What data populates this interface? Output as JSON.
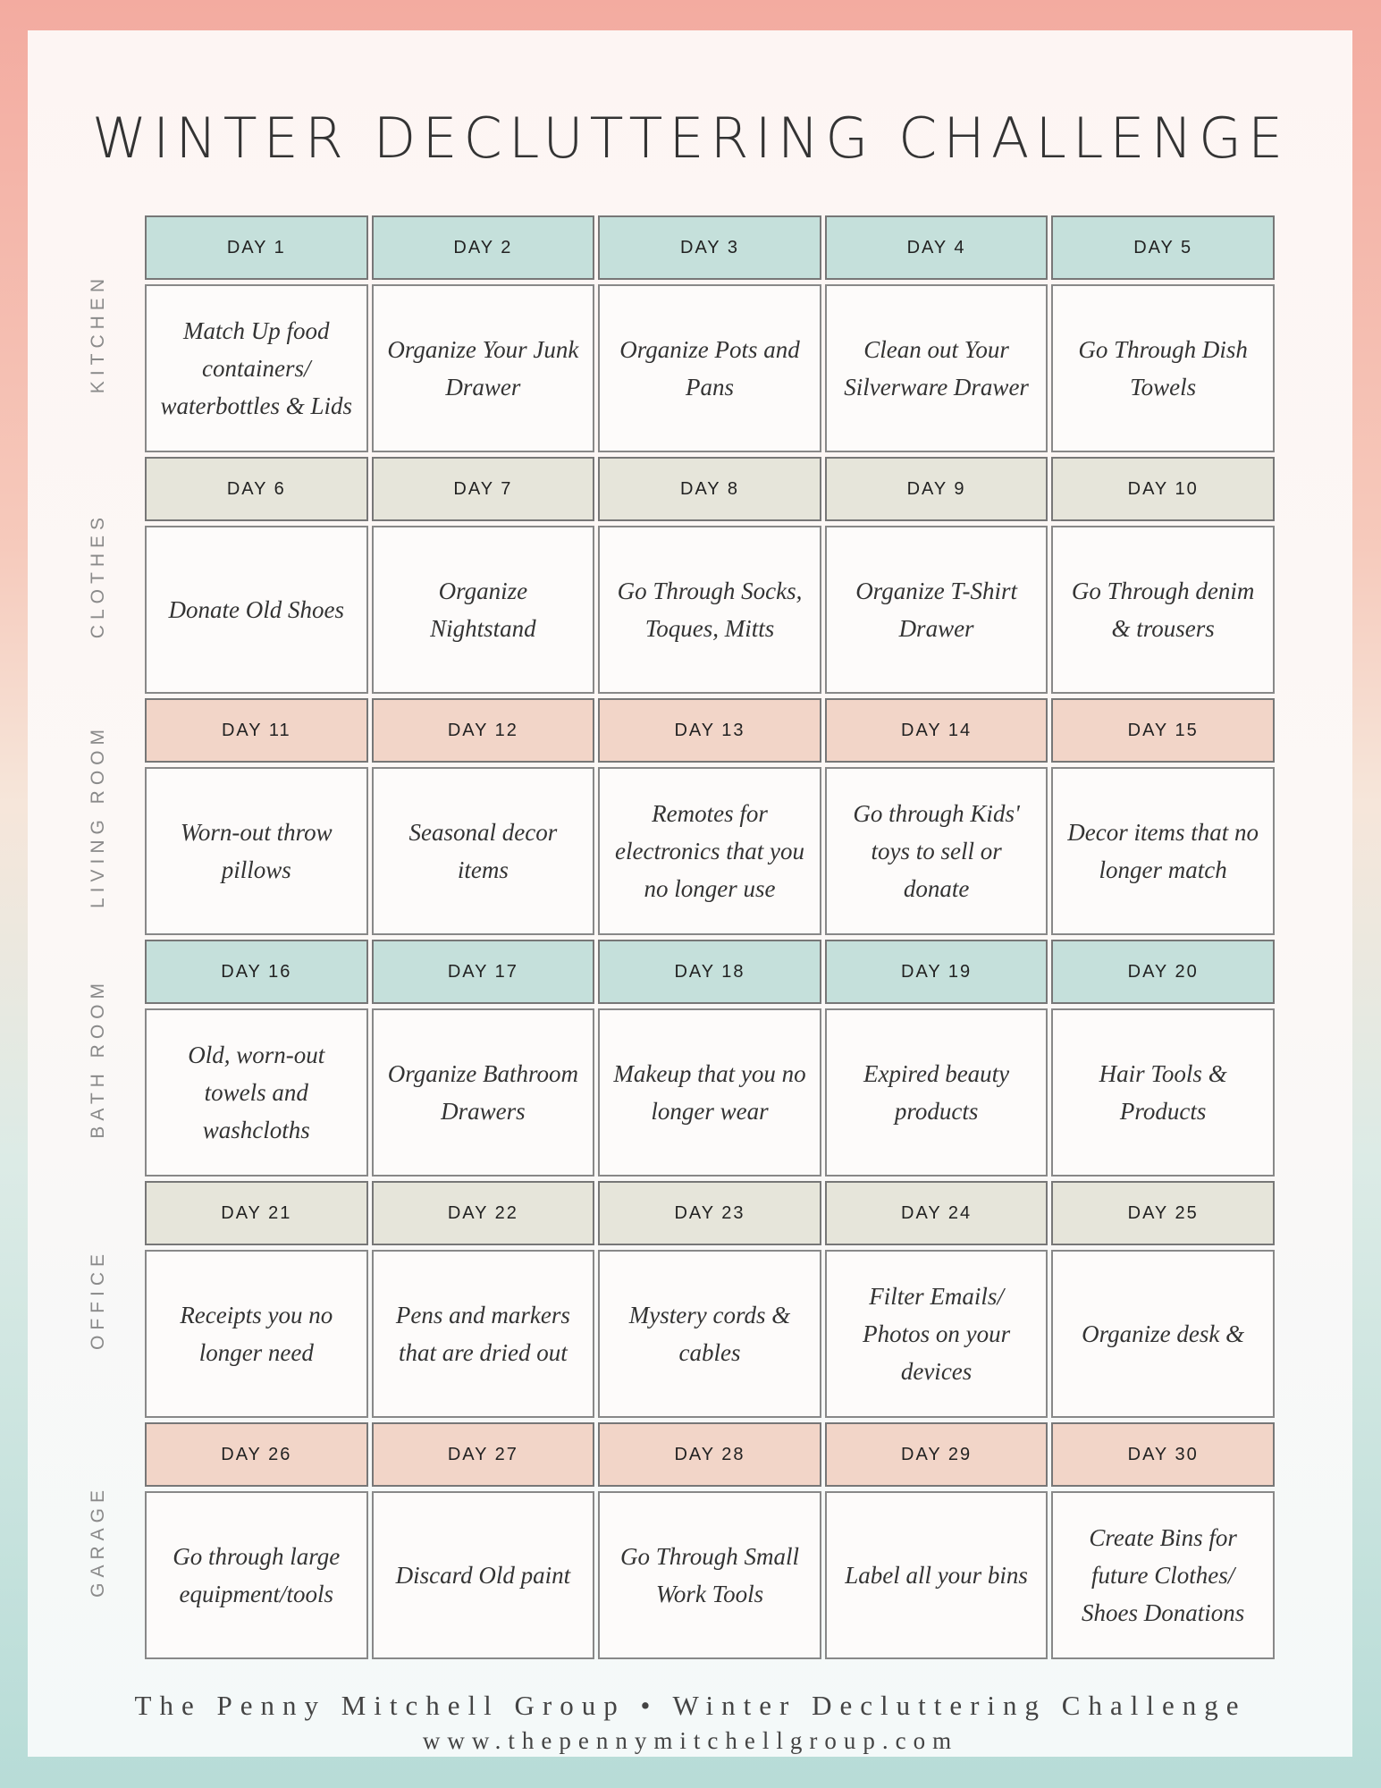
{
  "title": "WINTER DECLUTTERING CHALLENGE",
  "colors": {
    "teal": "#c5e0db",
    "beige": "#e6e5da",
    "pink": "#f2d5c8"
  },
  "sections": [
    {
      "label": "KITCHEN",
      "color": "#c5e0db",
      "days": [
        "DAY 1",
        "DAY 2",
        "DAY 3",
        "DAY 4",
        "DAY 5"
      ],
      "tasks": [
        "Match Up food containers/ waterbottles & Lids",
        "Organize Your Junk Drawer",
        "Organize Pots and Pans",
        "Clean out Your Silverware Drawer",
        "Go Through Dish Towels"
      ]
    },
    {
      "label": "CLOTHES",
      "color": "#e6e5da",
      "days": [
        "DAY 6",
        "DAY 7",
        "DAY 8",
        "DAY 9",
        "DAY 10"
      ],
      "tasks": [
        "Donate Old  Shoes",
        "Organize Nightstand",
        "Go Through Socks, Toques, Mitts",
        "Organize T-Shirt Drawer",
        "Go Through denim & trousers"
      ]
    },
    {
      "label": "LIVING ROOM",
      "color": "#f2d5c8",
      "days": [
        "DAY 11",
        "DAY 12",
        "DAY 13",
        "DAY 14",
        "DAY 15"
      ],
      "tasks": [
        "Worn-out throw pillows",
        "Seasonal decor items",
        "Remotes for electronics that you no longer use",
        "Go through Kids' toys to sell or donate",
        "Decor items that no longer match"
      ]
    },
    {
      "label": "BATH ROOM",
      "color": "#c5e0db",
      "days": [
        "DAY 16",
        "DAY 17",
        "DAY 18",
        "DAY 19",
        "DAY 20"
      ],
      "tasks": [
        "Old, worn-out towels and washcloths",
        "Organize Bathroom Drawers",
        "Makeup that you no longer wear",
        "Expired beauty products",
        "Hair Tools & Products"
      ]
    },
    {
      "label": "OFFICE",
      "color": "#e6e5da",
      "days": [
        "DAY 21",
        "DAY 22",
        "DAY 23",
        "DAY 24",
        "DAY 25"
      ],
      "tasks": [
        "Receipts you no longer need",
        "Pens and markers that are dried out",
        "Mystery cords & cables",
        "Filter Emails/ Photos on your devices",
        "Organize desk &"
      ]
    },
    {
      "label": "GARAGE",
      "color": "#f2d5c8",
      "days": [
        "DAY 26",
        "DAY 27",
        "DAY 28",
        "DAY 29",
        "DAY 30"
      ],
      "tasks": [
        "Go through large equipment/tools",
        "Discard Old paint",
        "Go Through Small Work Tools",
        "Label all your bins",
        "Create Bins for future Clothes/ Shoes Donations"
      ]
    }
  ],
  "footer": {
    "line1": "The Penny Mitchell Group • Winter Decluttering Challenge",
    "line2": "www.thepennymitchellgroup.com"
  }
}
